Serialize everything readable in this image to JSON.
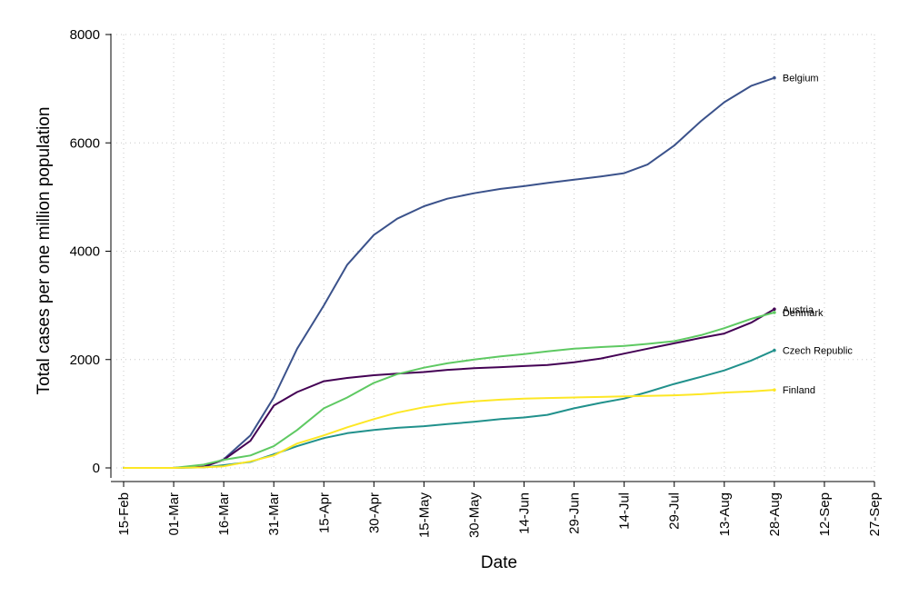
{
  "chart_data": {
    "type": "line",
    "title": "",
    "xlabel": "Date",
    "ylabel": "Total cases per one million population",
    "grid": true,
    "legend": "direct labels at line ends",
    "xlim": [
      "2020-02-15",
      "2020-09-27"
    ],
    "ylim": [
      0,
      8000
    ],
    "x_ticks": [
      "15-Feb",
      "01-Mar",
      "16-Mar",
      "31-Mar",
      "15-Apr",
      "30-Apr",
      "15-May",
      "30-May",
      "14-Jun",
      "29-Jun",
      "14-Jul",
      "29-Jul",
      "13-Aug",
      "28-Aug",
      "12-Sep",
      "27-Sep"
    ],
    "y_ticks": [
      "0",
      "2000",
      "4000",
      "6000",
      "8000"
    ],
    "x": [
      "2020-02-15",
      "2020-03-01",
      "2020-03-10",
      "2020-03-16",
      "2020-03-24",
      "2020-03-31",
      "2020-04-07",
      "2020-04-15",
      "2020-04-22",
      "2020-04-30",
      "2020-05-07",
      "2020-05-15",
      "2020-05-22",
      "2020-05-30",
      "2020-06-07",
      "2020-06-14",
      "2020-06-21",
      "2020-06-29",
      "2020-07-07",
      "2020-07-14",
      "2020-07-21",
      "2020-07-29",
      "2020-08-06",
      "2020-08-13",
      "2020-08-21",
      "2020-08-28"
    ],
    "series": [
      {
        "name": "Belgium",
        "color": "#3b528b",
        "values": [
          0,
          0,
          20,
          160,
          600,
          1300,
          2200,
          3000,
          3750,
          4300,
          4600,
          4830,
          4970,
          5070,
          5150,
          5200,
          5260,
          5320,
          5380,
          5440,
          5600,
          5950,
          6400,
          6750,
          7050,
          7200
        ]
      },
      {
        "name": "Austria",
        "color": "#440154",
        "values": [
          0,
          0,
          20,
          150,
          500,
          1150,
          1400,
          1600,
          1660,
          1710,
          1740,
          1770,
          1810,
          1840,
          1860,
          1880,
          1900,
          1950,
          2020,
          2110,
          2200,
          2300,
          2400,
          2480,
          2680,
          2930
        ]
      },
      {
        "name": "Denmark",
        "color": "#5ec962",
        "values": [
          0,
          0,
          60,
          150,
          230,
          400,
          700,
          1100,
          1300,
          1570,
          1730,
          1850,
          1930,
          2000,
          2060,
          2100,
          2150,
          2200,
          2230,
          2250,
          2290,
          2340,
          2450,
          2580,
          2750,
          2870
        ]
      },
      {
        "name": "Czech Republic",
        "color": "#21918c",
        "values": [
          0,
          0,
          10,
          50,
          110,
          250,
          400,
          550,
          640,
          700,
          740,
          770,
          810,
          850,
          900,
          930,
          980,
          1100,
          1200,
          1280,
          1400,
          1550,
          1680,
          1800,
          1980,
          2170
        ]
      },
      {
        "name": "Finland",
        "color": "#fde725",
        "values": [
          0,
          0,
          10,
          30,
          120,
          230,
          450,
          600,
          750,
          900,
          1020,
          1120,
          1180,
          1230,
          1260,
          1280,
          1290,
          1300,
          1310,
          1320,
          1330,
          1340,
          1360,
          1390,
          1410,
          1440
        ]
      }
    ]
  }
}
